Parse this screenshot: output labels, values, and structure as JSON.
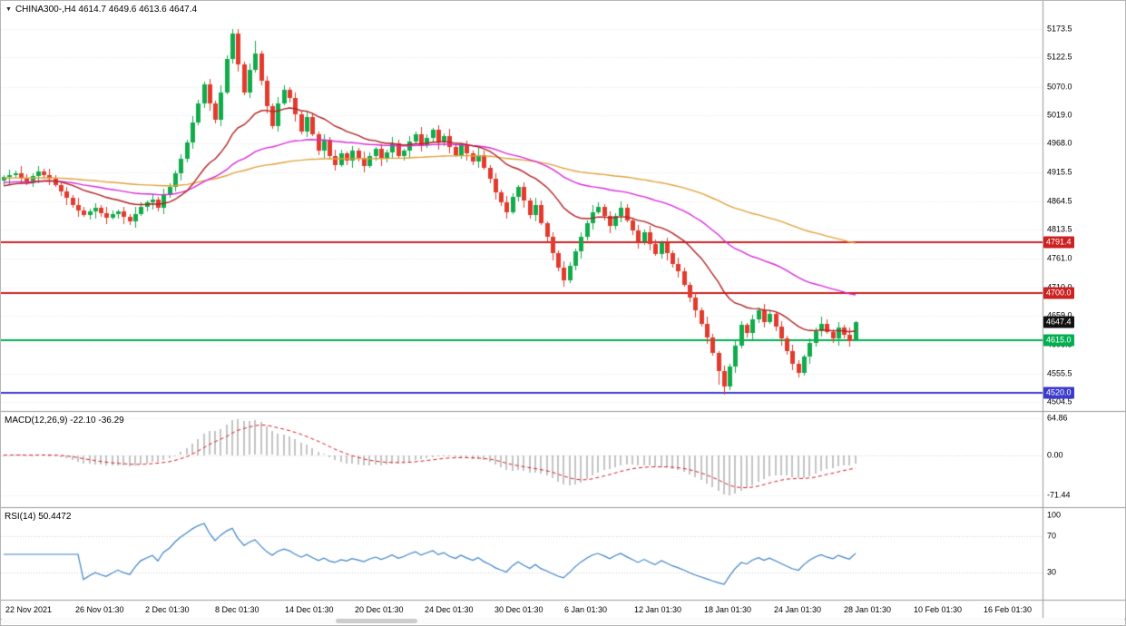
{
  "window": {
    "background": "#ffffff"
  },
  "colors": {
    "candle_up": "#12ab4c",
    "candle_down": "#e23b2e",
    "ma_fast": "#b22222",
    "ma_mid": "#d92bd9",
    "ma_slow": "#e2a23b",
    "level_red": "#cc2222",
    "level_green": "#00b050",
    "level_blue": "#3c3ccc",
    "price_tag_bg": "#111111",
    "macd_histogram": "#c4c4c4",
    "macd_signal": "#d92222",
    "rsi_line": "#3e84c8",
    "grid": "#e9e9e9",
    "separator": "#9a9a9a",
    "text": "#000000"
  },
  "x_axis": {
    "labels": [
      "22 Nov 2021",
      "26 Nov 01:30",
      "2 Dec 01:30",
      "8 Dec 01:30",
      "14 Dec 01:30",
      "20 Dec 01:30",
      "24 Dec 01:30",
      "30 Dec 01:30",
      "6 Jan 01:30",
      "12 Jan 01:30",
      "18 Jan 01:30",
      "24 Jan 01:30",
      "28 Jan 01:30",
      "10 Feb 01:30",
      "16 Feb 01:30"
    ]
  },
  "chart_data": [
    {
      "type": "candlestick",
      "symbol": "CHINA300-",
      "timeframe": "H4",
      "title": "CHINA300-,H4 4614.7 4649.6 4613.6 4647.4",
      "current_bar": {
        "open": 4614.7,
        "high": 4649.6,
        "low": 4613.6,
        "close": 4647.4
      },
      "y_ticks": [
        5173.5,
        5122.5,
        5070.0,
        5019.0,
        4968.0,
        4915.5,
        4864.5,
        4813.5,
        4761.0,
        4710.0,
        4659.0,
        4606.5,
        4555.5,
        4504.5
      ],
      "y_range": [
        5224,
        4488
      ],
      "first_open": 4902,
      "closes": [
        4908,
        4912,
        4915,
        4906,
        4898,
        4910,
        4918,
        4911,
        4905,
        4894,
        4882,
        4870,
        4858,
        4848,
        4840,
        4847,
        4852,
        4843,
        4835,
        4841,
        4846,
        4836,
        4828,
        4842,
        4855,
        4862,
        4868,
        4852,
        4875,
        4890,
        4915,
        4940,
        4970,
        5005,
        5040,
        5075,
        5040,
        5010,
        5060,
        5120,
        5165,
        5110,
        5060,
        5100,
        5130,
        5080,
        5035,
        5000,
        5040,
        5065,
        5050,
        5020,
        4990,
        5015,
        4985,
        4955,
        4975,
        4945,
        4930,
        4950,
        4938,
        4955,
        4942,
        4928,
        4945,
        4958,
        4940,
        4952,
        4968,
        4945,
        4955,
        4972,
        4985,
        4965,
        4978,
        4992,
        4970,
        4982,
        4962,
        4948,
        4965,
        4950,
        4935,
        4948,
        4925,
        4905,
        4880,
        4862,
        4845,
        4872,
        4890,
        4865,
        4840,
        4858,
        4825,
        4800,
        4772,
        4745,
        4722,
        4748,
        4775,
        4800,
        4825,
        4845,
        4855,
        4838,
        4820,
        4838,
        4852,
        4830,
        4812,
        4792,
        4808,
        4788,
        4770,
        4790,
        4772,
        4752,
        4738,
        4715,
        4692,
        4668,
        4645,
        4620,
        4592,
        4560,
        4532,
        4568,
        4605,
        4642,
        4628,
        4652,
        4668,
        4648,
        4662,
        4640,
        4618,
        4595,
        4572,
        4556,
        4585,
        4610,
        4632,
        4645,
        4630,
        4618,
        4638,
        4625,
        4614,
        4647
      ],
      "wick_up_pattern": [
        4,
        9,
        5,
        12,
        7
      ],
      "wick_down_pattern": [
        6,
        11,
        4,
        8,
        13
      ],
      "overrides": {
        "40": {
          "high": 5173.5
        },
        "44": {
          "high": 5152
        },
        "125": {
          "low": 4535
        },
        "126": {
          "low": 4518
        },
        "127": {
          "low": 4526
        },
        "139": {
          "low": 4549
        },
        "140": {
          "low": 4552
        },
        "149": {
          "open": 4614.7,
          "high": 4649.6,
          "low": 4613.6,
          "close": 4647.4
        }
      },
      "h_lines": [
        {
          "value": 4791.4,
          "label": "4791.4",
          "color": "#cc2222",
          "label_bg": "#cc2222"
        },
        {
          "value": 4700.0,
          "label": "4700.0",
          "color": "#cc2222",
          "label_bg": "#cc2222"
        },
        {
          "value": 4615.0,
          "label": "4615.0",
          "color": "#00b050",
          "label_bg": "#00b050"
        },
        {
          "value": 4520.0,
          "label": "4520.0",
          "color": "#3c3ccc",
          "label_bg": "#3c3ccc"
        }
      ],
      "price_tag": {
        "value": 4647.4,
        "label": "4647.4",
        "bg": "#111111"
      },
      "moving_averages": [
        {
          "name": "ma-fast-darkred",
          "period": 21,
          "seed": 4892,
          "color": "#b22222"
        },
        {
          "name": "ma-mid-magenta",
          "period": 55,
          "seed": 4898,
          "color": "#d92bd9"
        },
        {
          "name": "ma-slow-orange",
          "period": 130,
          "seed": 4906,
          "color": "#e2a23b"
        }
      ]
    },
    {
      "type": "macd",
      "label": "MACD(12,26,9) -22.10 -36.29",
      "params": [
        12,
        26,
        9
      ],
      "current": {
        "macd": -22.1,
        "signal": -36.29
      },
      "y_ticks": [
        64.86,
        0.0,
        -71.44
      ],
      "y_range": [
        75,
        -92
      ]
    },
    {
      "type": "rsi",
      "label": "RSI(14) 50.4472",
      "period": 14,
      "current": 50.4472,
      "y_ticks": [
        100,
        70,
        30
      ],
      "levels": [
        70,
        30
      ],
      "y_range": [
        100,
        0
      ]
    }
  ]
}
